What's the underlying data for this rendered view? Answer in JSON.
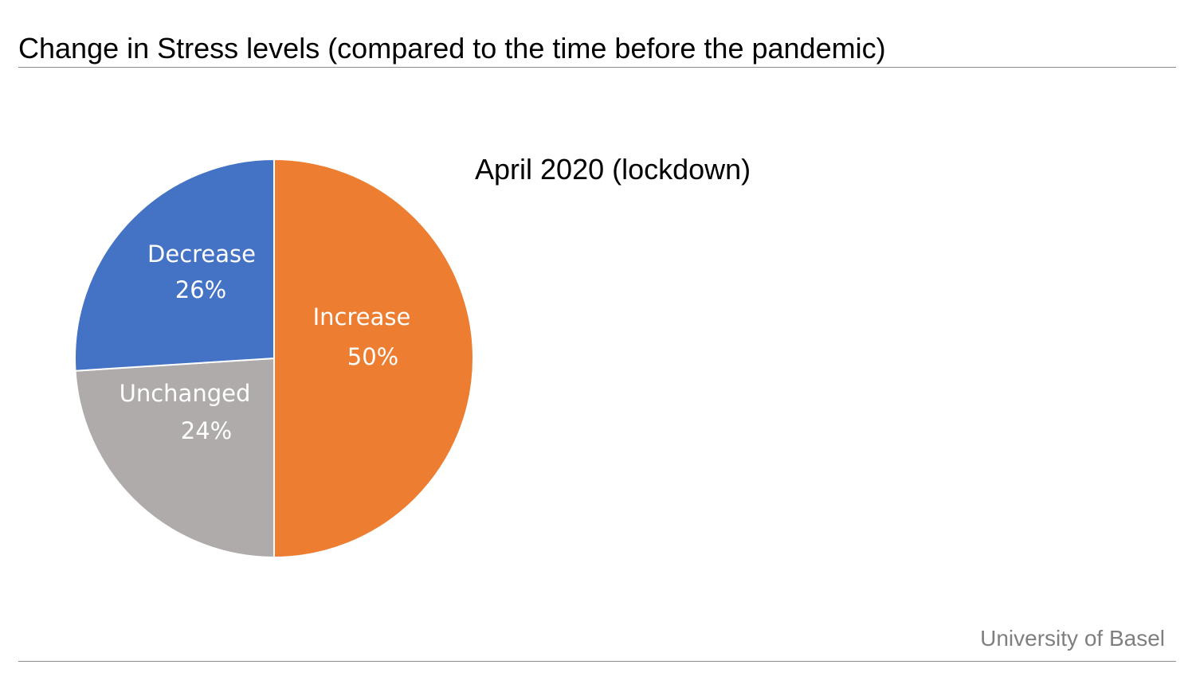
{
  "header": {
    "title": "Change in Stress levels (compared to the time before the pandemic)"
  },
  "footer": {
    "text": "University of Basel"
  },
  "chart_data": {
    "type": "pie",
    "title": "April 2020 (lockdown)",
    "start_angle": "12 o'clock, clockwise",
    "slices": [
      {
        "label": "Increase",
        "value": 50,
        "display": "50%",
        "color": "#ED7D31"
      },
      {
        "label": "Unchanged",
        "value": 24,
        "display": "24%",
        "color": "#AFABAB"
      },
      {
        "label": "Decrease",
        "value": 26,
        "display": "26%",
        "color": "#4472C4"
      }
    ]
  }
}
